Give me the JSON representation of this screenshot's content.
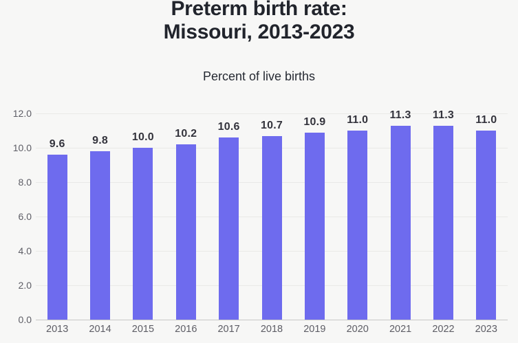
{
  "header": {
    "title_line1": "Preterm birth rate:",
    "title_line2": "Missouri, 2013-2023",
    "subtitle": "Percent of live births"
  },
  "chart_data": {
    "type": "bar",
    "title": "Preterm birth rate: Missouri, 2013-2023",
    "subtitle": "Percent of live births",
    "categories": [
      "2013",
      "2014",
      "2015",
      "2016",
      "2017",
      "2018",
      "2019",
      "2020",
      "2021",
      "2022",
      "2023"
    ],
    "values": [
      9.6,
      9.8,
      10.0,
      10.2,
      10.6,
      10.7,
      10.9,
      11.0,
      11.3,
      11.3,
      11.0
    ],
    "bar_labels": [
      "9.6",
      "9.8",
      "10.0",
      "10.2",
      "10.6",
      "10.7",
      "10.9",
      "11.0",
      "11.3",
      "11.3",
      "11.0"
    ],
    "xlabel": "",
    "ylabel": "",
    "ylim": [
      0,
      12
    ],
    "ytick_step": 2,
    "ytick_labels": [
      "0.0",
      "2.0",
      "4.0",
      "6.0",
      "8.0",
      "10.0",
      "12.0"
    ],
    "grid": true,
    "legend": false,
    "colors": {
      "bar": "#6e6bee",
      "background": "#f7f7f6",
      "gridline": "#e9e9e7",
      "baseline": "#c7c7c6",
      "title": "#21242c",
      "subtitle": "#262a33",
      "bar_label": "#33333c",
      "tick_label": "#5d5d65"
    }
  }
}
